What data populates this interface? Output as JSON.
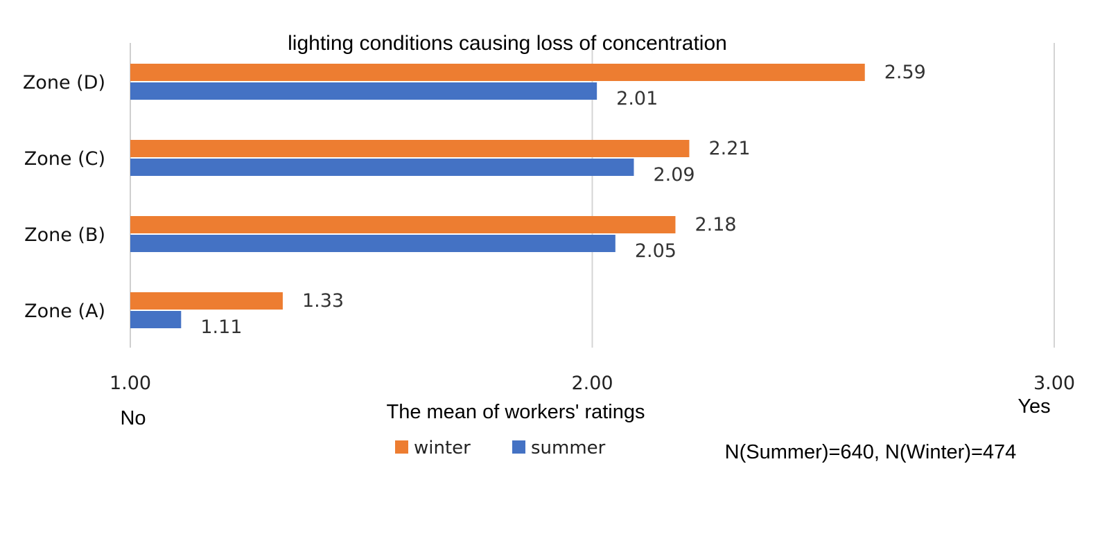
{
  "chart_data": {
    "type": "bar",
    "orientation": "horizontal",
    "title": "lighting conditions causing loss of concentration",
    "xlabel": "The mean of workers' ratings",
    "ylabel": "",
    "xlim": [
      1.0,
      3.0
    ],
    "xticks": [
      "1.00",
      "2.00",
      "3.00"
    ],
    "xtick_values": [
      1.0,
      2.0,
      3.0
    ],
    "x_end_labels": {
      "low": "No",
      "high": "Yes"
    },
    "grid": true,
    "categories": [
      "Zone (A)",
      "Zone (B)",
      "Zone (C)",
      "Zone (D)"
    ],
    "series": [
      {
        "name": "winter",
        "color": "#ED7D31",
        "values": [
          1.33,
          2.18,
          2.21,
          2.59
        ],
        "labels": [
          "1.33",
          "2.18",
          "2.21",
          "2.59"
        ]
      },
      {
        "name": "summer",
        "color": "#4472C4",
        "values": [
          1.11,
          2.05,
          2.09,
          2.01
        ],
        "labels": [
          "1.11",
          "2.05",
          "2.09",
          "2.01"
        ]
      }
    ],
    "legend": {
      "position": "bottom",
      "entries": [
        "winter",
        "summer"
      ]
    },
    "annotation": "N(Summer)=640, N(Winter)=474"
  }
}
